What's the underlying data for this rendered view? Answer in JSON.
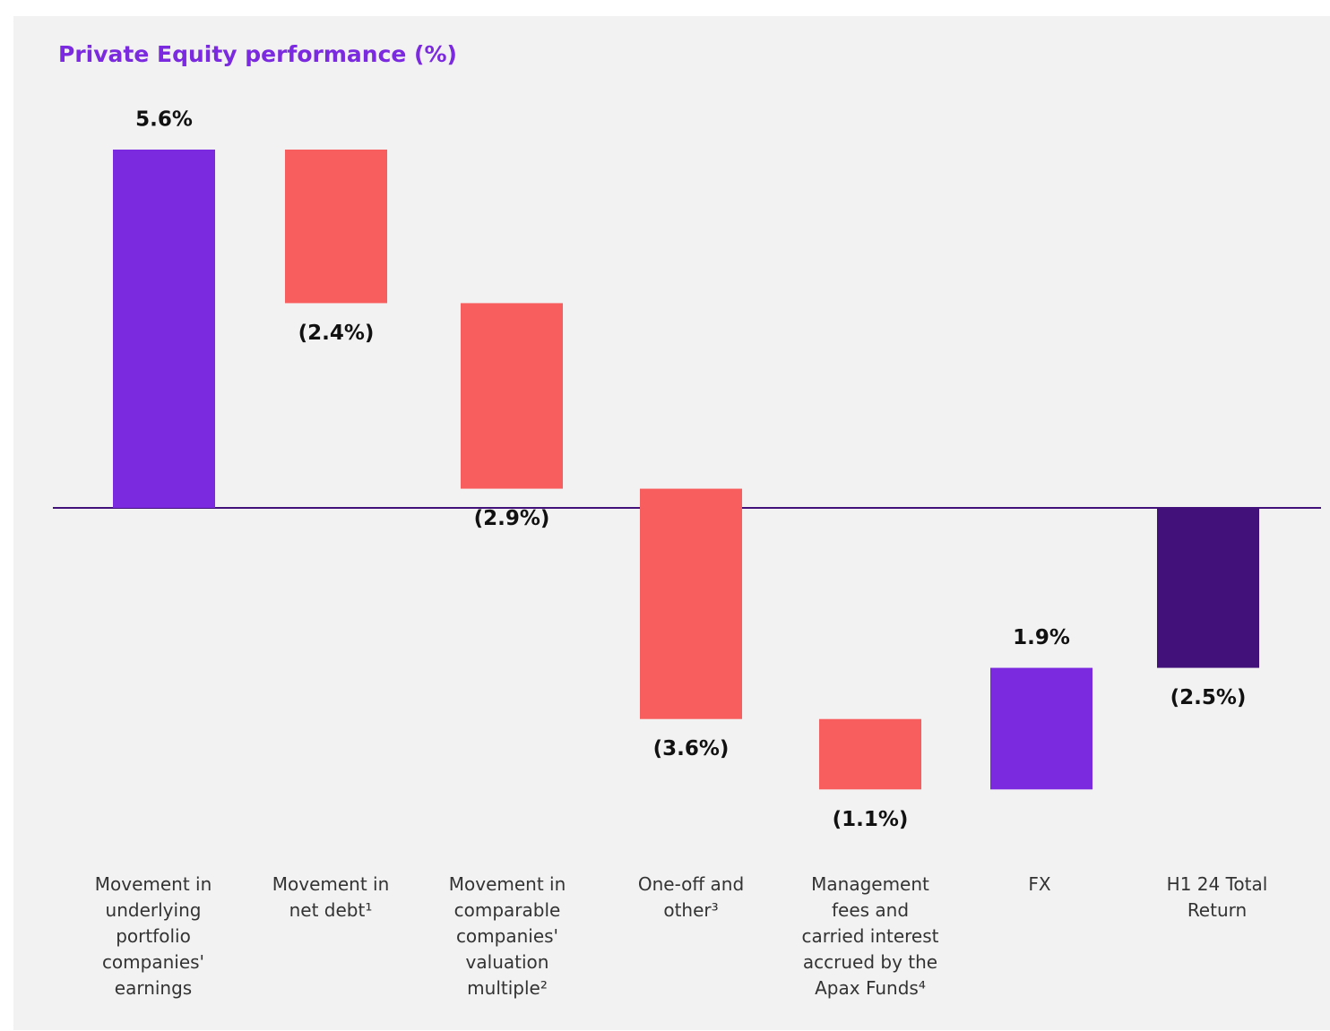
{
  "chart_data": {
    "type": "waterfall",
    "title": "Private Equity performance (%)",
    "categories": [
      "Movement in underlying portfolio companies' earnings",
      "Movement in net debt¹",
      "Movement in comparable companies' valuation multiple²",
      "One-off and other³",
      "Management fees and carried interest accrued by the Apax Funds⁴",
      "FX",
      "H1 24 Total Return"
    ],
    "values": [
      5.6,
      -2.4,
      -2.9,
      -3.6,
      -1.1,
      1.9,
      -2.5
    ],
    "value_labels": [
      "5.6%",
      "(2.4%)",
      "(2.9%)",
      "(3.6%)",
      "(1.1%)",
      "1.9%",
      "(2.5%)"
    ],
    "colors": [
      "#7b2ae0",
      "#f95e5e",
      "#f95e5e",
      "#f95e5e",
      "#f95e5e",
      "#7b2ae0",
      "#42127a"
    ]
  }
}
